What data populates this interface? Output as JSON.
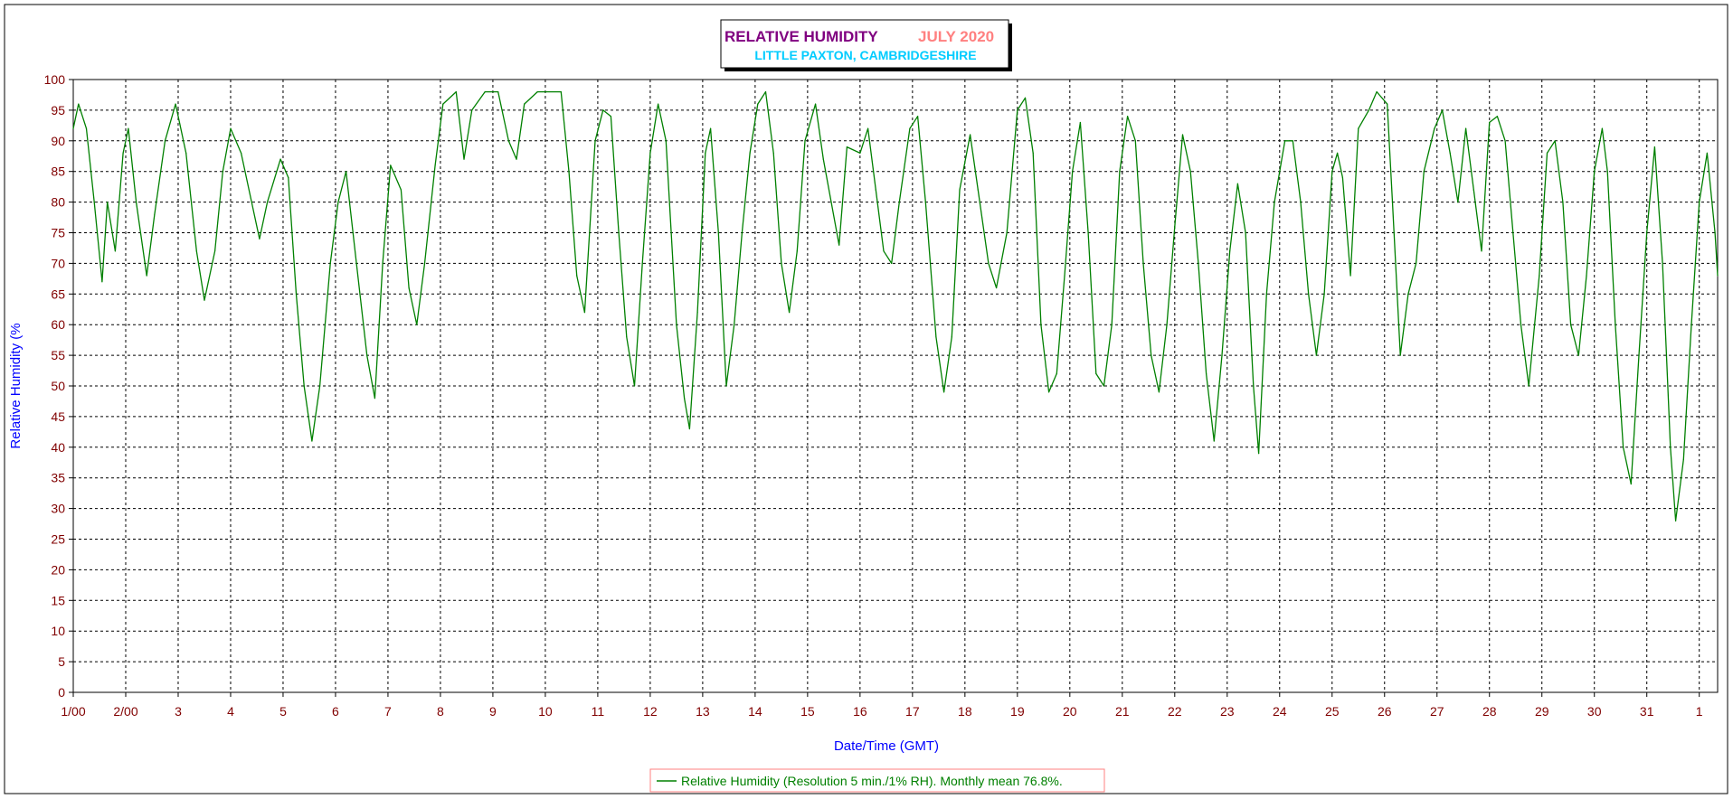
{
  "title": {
    "main": "RELATIVE HUMIDITY",
    "period": "JULY 2020",
    "location": "LITTLE PAXTON, CAMBRIDGESHIRE"
  },
  "colors": {
    "title_main": "#800080",
    "title_period": "#ff8080",
    "location": "#00ccff",
    "axis_label": "#0000ff",
    "tick_label": "#800000",
    "series": "#008000"
  },
  "chart_data": {
    "type": "line",
    "title": "RELATIVE HUMIDITY JULY 2020",
    "subtitle": "LITTLE PAXTON, CAMBRIDGESHIRE",
    "xlabel": "Date/Time (GMT)",
    "ylabel": "Relative Humidity (%",
    "ylim": [
      0,
      100
    ],
    "xlim": [
      1,
      32.35
    ],
    "x_unit": "day of July 2020 (GMT)",
    "yticks": [
      0,
      5,
      10,
      15,
      20,
      25,
      30,
      35,
      40,
      45,
      50,
      55,
      60,
      65,
      70,
      75,
      80,
      85,
      90,
      95,
      100
    ],
    "xtick_labels": [
      "1/00",
      "2/00",
      "3",
      "4",
      "5",
      "6",
      "7",
      "8",
      "9",
      "10",
      "11",
      "12",
      "13",
      "14",
      "15",
      "16",
      "17",
      "18",
      "19",
      "20",
      "21",
      "22",
      "23",
      "24",
      "25",
      "26",
      "27",
      "28",
      "29",
      "30",
      "31",
      "1"
    ],
    "grid": true,
    "legend_position": "bottom-center",
    "series": [
      {
        "name": "Relative Humidity (Resolution 5 min./1% RH). Monthly mean 76.8%.",
        "points": [
          [
            1.0,
            92
          ],
          [
            1.1,
            96
          ],
          [
            1.25,
            92
          ],
          [
            1.4,
            80
          ],
          [
            1.55,
            67
          ],
          [
            1.65,
            80
          ],
          [
            1.8,
            72
          ],
          [
            1.95,
            88
          ],
          [
            2.05,
            92
          ],
          [
            2.2,
            80
          ],
          [
            2.4,
            68
          ],
          [
            2.55,
            78
          ],
          [
            2.75,
            90
          ],
          [
            2.95,
            96
          ],
          [
            3.15,
            88
          ],
          [
            3.35,
            72
          ],
          [
            3.5,
            64
          ],
          [
            3.7,
            72
          ],
          [
            3.85,
            85
          ],
          [
            4.0,
            92
          ],
          [
            4.2,
            88
          ],
          [
            4.4,
            80
          ],
          [
            4.55,
            74
          ],
          [
            4.7,
            80
          ],
          [
            4.95,
            87
          ],
          [
            5.1,
            84
          ],
          [
            5.25,
            65
          ],
          [
            5.4,
            50
          ],
          [
            5.55,
            41
          ],
          [
            5.7,
            50
          ],
          [
            5.9,
            70
          ],
          [
            6.05,
            80
          ],
          [
            6.2,
            85
          ],
          [
            6.4,
            70
          ],
          [
            6.6,
            55
          ],
          [
            6.75,
            48
          ],
          [
            6.9,
            70
          ],
          [
            7.05,
            86
          ],
          [
            7.25,
            82
          ],
          [
            7.4,
            66
          ],
          [
            7.55,
            60
          ],
          [
            7.7,
            70
          ],
          [
            7.9,
            86
          ],
          [
            8.05,
            96
          ],
          [
            8.3,
            98
          ],
          [
            8.45,
            87
          ],
          [
            8.6,
            95
          ],
          [
            8.85,
            98
          ],
          [
            9.1,
            98
          ],
          [
            9.3,
            90
          ],
          [
            9.45,
            87
          ],
          [
            9.6,
            96
          ],
          [
            9.85,
            98
          ],
          [
            10.3,
            98
          ],
          [
            10.45,
            85
          ],
          [
            10.6,
            68
          ],
          [
            10.75,
            62
          ],
          [
            10.95,
            90
          ],
          [
            11.1,
            95
          ],
          [
            11.25,
            94
          ],
          [
            11.4,
            75
          ],
          [
            11.55,
            58
          ],
          [
            11.7,
            50
          ],
          [
            11.85,
            70
          ],
          [
            12.0,
            88
          ],
          [
            12.15,
            96
          ],
          [
            12.3,
            90
          ],
          [
            12.5,
            60
          ],
          [
            12.65,
            48
          ],
          [
            12.75,
            43
          ],
          [
            12.9,
            62
          ],
          [
            13.05,
            88
          ],
          [
            13.15,
            92
          ],
          [
            13.3,
            75
          ],
          [
            13.45,
            50
          ],
          [
            13.6,
            60
          ],
          [
            13.75,
            75
          ],
          [
            13.9,
            88
          ],
          [
            14.05,
            96
          ],
          [
            14.2,
            98
          ],
          [
            14.35,
            88
          ],
          [
            14.5,
            70
          ],
          [
            14.65,
            62
          ],
          [
            14.8,
            72
          ],
          [
            14.95,
            90
          ],
          [
            15.15,
            96
          ],
          [
            15.3,
            87
          ],
          [
            15.45,
            80
          ],
          [
            15.6,
            73
          ],
          [
            15.75,
            89
          ],
          [
            16.0,
            88
          ],
          [
            16.15,
            92
          ],
          [
            16.3,
            82
          ],
          [
            16.45,
            72
          ],
          [
            16.6,
            70
          ],
          [
            16.75,
            80
          ],
          [
            16.95,
            92
          ],
          [
            17.1,
            94
          ],
          [
            17.25,
            80
          ],
          [
            17.45,
            58
          ],
          [
            17.6,
            49
          ],
          [
            17.75,
            58
          ],
          [
            17.9,
            82
          ],
          [
            18.1,
            91
          ],
          [
            18.25,
            82
          ],
          [
            18.45,
            70
          ],
          [
            18.6,
            66
          ],
          [
            18.8,
            75
          ],
          [
            19.0,
            95
          ],
          [
            19.15,
            97
          ],
          [
            19.3,
            88
          ],
          [
            19.45,
            60
          ],
          [
            19.6,
            49
          ],
          [
            19.75,
            52
          ],
          [
            19.9,
            68
          ],
          [
            20.05,
            85
          ],
          [
            20.2,
            93
          ],
          [
            20.35,
            75
          ],
          [
            20.5,
            52
          ],
          [
            20.65,
            50
          ],
          [
            20.8,
            60
          ],
          [
            20.95,
            85
          ],
          [
            21.1,
            94
          ],
          [
            21.25,
            90
          ],
          [
            21.4,
            70
          ],
          [
            21.55,
            55
          ],
          [
            21.7,
            49
          ],
          [
            21.85,
            60
          ],
          [
            22.0,
            76
          ],
          [
            22.15,
            91
          ],
          [
            22.3,
            85
          ],
          [
            22.45,
            70
          ],
          [
            22.6,
            52
          ],
          [
            22.75,
            41
          ],
          [
            22.9,
            55
          ],
          [
            23.05,
            72
          ],
          [
            23.2,
            83
          ],
          [
            23.35,
            75
          ],
          [
            23.5,
            50
          ],
          [
            23.6,
            39
          ],
          [
            23.75,
            65
          ],
          [
            23.9,
            80
          ],
          [
            24.1,
            90
          ],
          [
            24.25,
            90
          ],
          [
            24.4,
            80
          ],
          [
            24.55,
            65
          ],
          [
            24.7,
            55
          ],
          [
            24.85,
            65
          ],
          [
            25.0,
            85
          ],
          [
            25.1,
            88
          ],
          [
            25.2,
            84
          ],
          [
            25.35,
            68
          ],
          [
            25.5,
            92
          ],
          [
            25.7,
            95
          ],
          [
            25.85,
            98
          ],
          [
            26.05,
            96
          ],
          [
            26.15,
            80
          ],
          [
            26.3,
            55
          ],
          [
            26.45,
            65
          ],
          [
            26.6,
            70
          ],
          [
            26.75,
            85
          ],
          [
            26.95,
            92
          ],
          [
            27.1,
            95
          ],
          [
            27.25,
            88
          ],
          [
            27.4,
            80
          ],
          [
            27.55,
            92
          ],
          [
            27.7,
            82
          ],
          [
            27.85,
            72
          ],
          [
            28.0,
            93
          ],
          [
            28.15,
            94
          ],
          [
            28.3,
            90
          ],
          [
            28.45,
            75
          ],
          [
            28.6,
            60
          ],
          [
            28.75,
            50
          ],
          [
            28.95,
            68
          ],
          [
            29.1,
            88
          ],
          [
            29.25,
            90
          ],
          [
            29.4,
            80
          ],
          [
            29.55,
            60
          ],
          [
            29.7,
            55
          ],
          [
            29.85,
            68
          ],
          [
            30.0,
            85
          ],
          [
            30.15,
            92
          ],
          [
            30.25,
            85
          ],
          [
            30.4,
            60
          ],
          [
            30.55,
            40
          ],
          [
            30.7,
            34
          ],
          [
            30.85,
            55
          ],
          [
            31.0,
            75
          ],
          [
            31.15,
            89
          ],
          [
            31.3,
            70
          ],
          [
            31.45,
            40
          ],
          [
            31.55,
            28
          ],
          [
            31.7,
            38
          ],
          [
            31.85,
            60
          ],
          [
            32.0,
            80
          ],
          [
            32.15,
            88
          ],
          [
            32.3,
            75
          ],
          [
            32.35,
            68
          ]
        ]
      }
    ]
  },
  "legend": {
    "label": "Relative Humidity (Resolution 5 min./1% RH). Monthly mean 76.8%."
  }
}
